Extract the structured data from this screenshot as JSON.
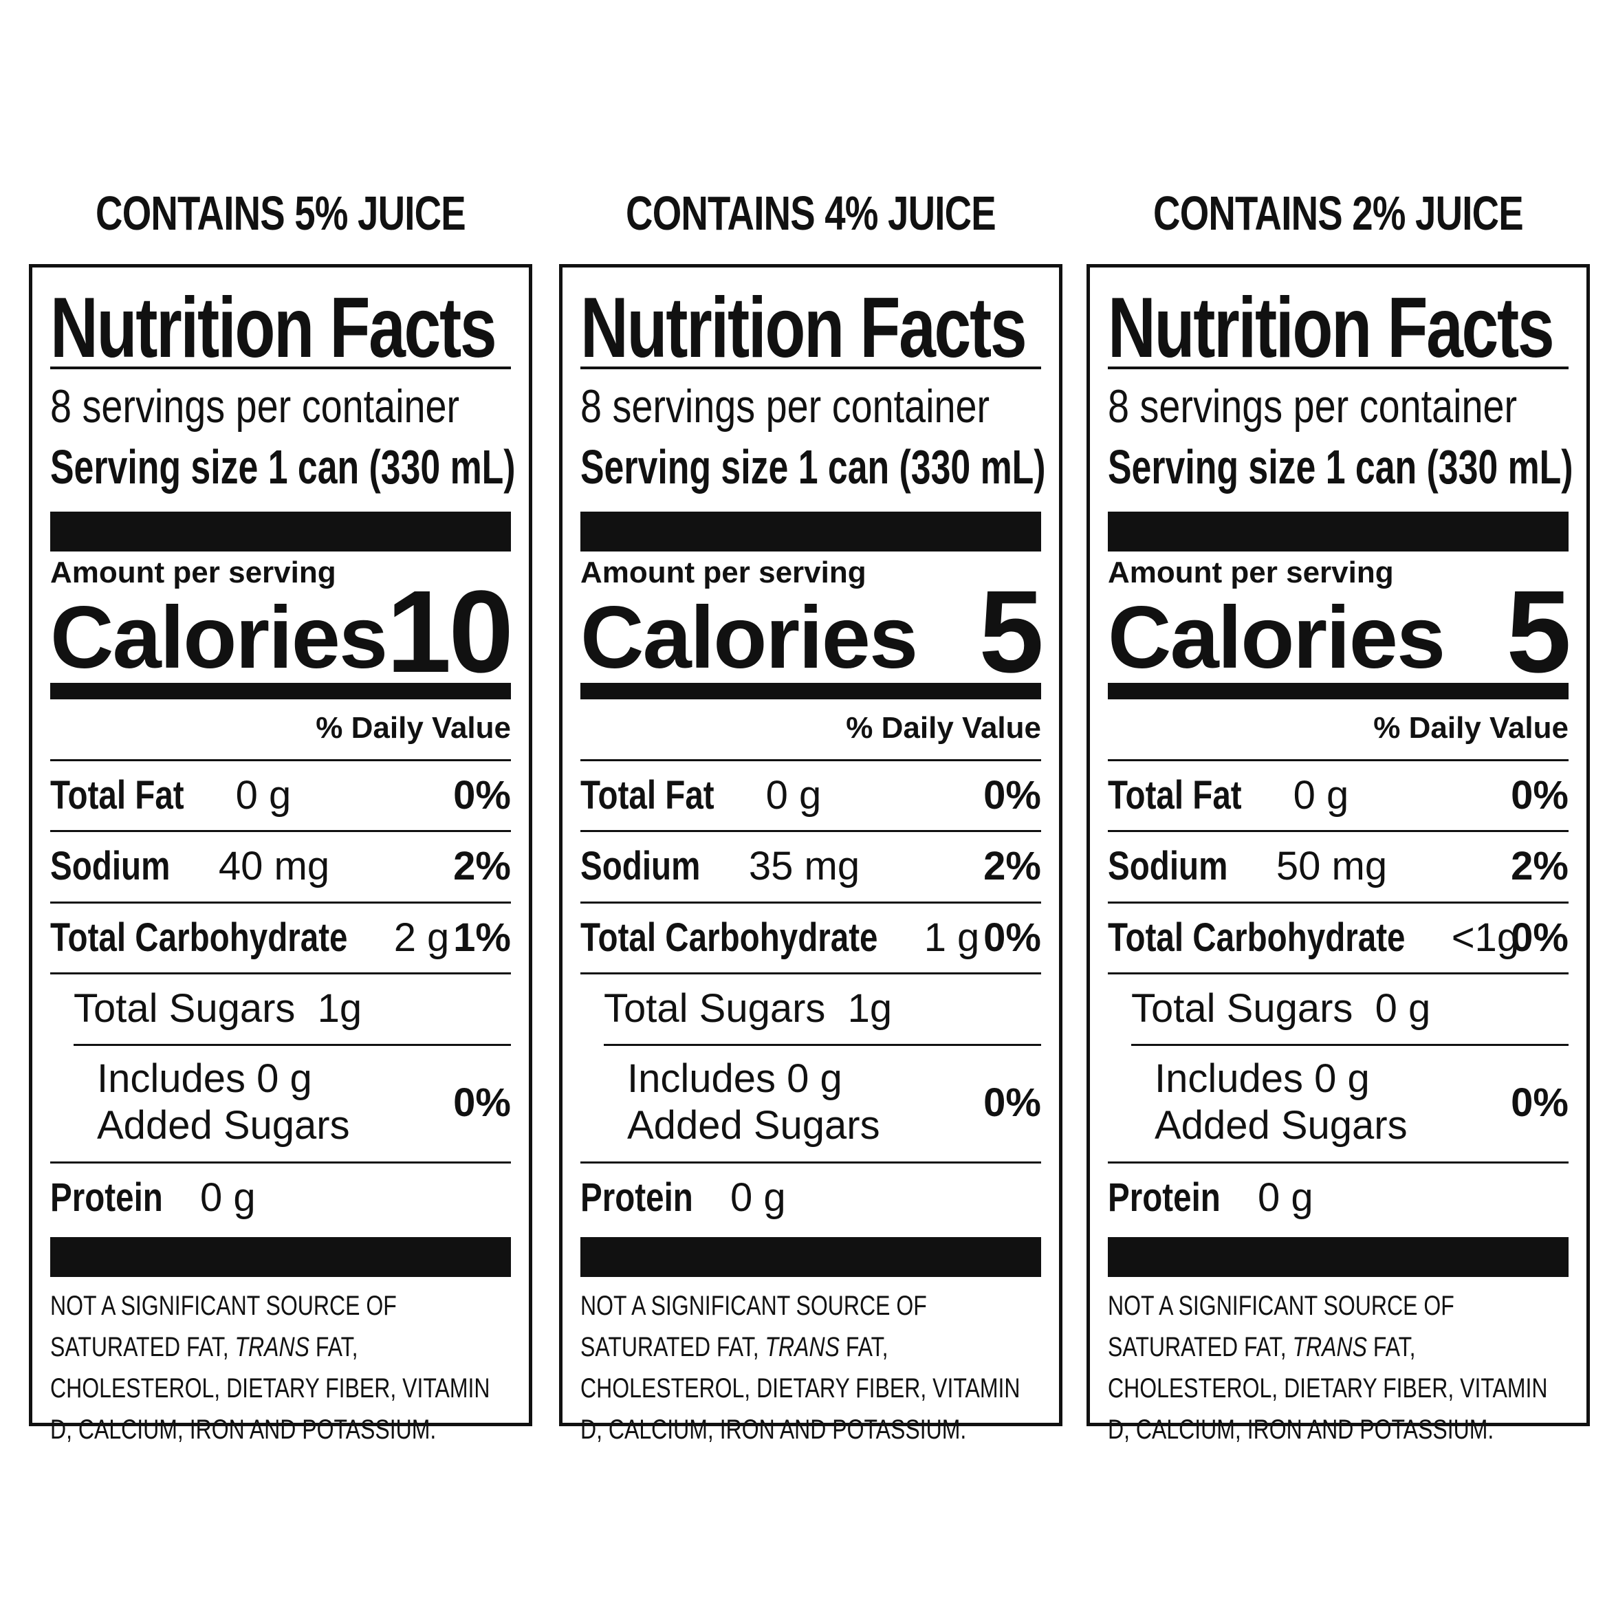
{
  "panels": [
    {
      "heading": "CONTAINS 5% JUICE",
      "title": "Nutrition Facts",
      "servings": "8 servings per container",
      "serving_size": "Serving size 1 can (330 mL)",
      "amount_per_serving": "Amount per serving",
      "calories_label": "Calories",
      "calories": "10",
      "dv_header": "% Daily Value",
      "total_fat": {
        "label": "Total Fat",
        "amount": "0 g",
        "dv": "0%"
      },
      "sodium": {
        "label": "Sodium",
        "amount": "40 mg",
        "dv": "2%"
      },
      "total_carb": {
        "label": "Total Carbohydrate",
        "amount": "2 g",
        "dv": "1%"
      },
      "total_sugars": {
        "label": "Total Sugars",
        "amount": "1g"
      },
      "added_sugars": {
        "line1": "Includes 0 g",
        "line2": "Added Sugars",
        "dv": "0%"
      },
      "protein": {
        "label": "Protein",
        "amount": "0 g"
      },
      "footnote_a": "NOT A SIGNIFICANT SOURCE OF SATURATED FAT, ",
      "footnote_trans": "TRANS",
      "footnote_b": " FAT, CHOLESTEROL, DIETARY FIBER, VITAMIN D, CALCIUM, IRON AND POTASSIUM."
    },
    {
      "heading": "CONTAINS 4% JUICE",
      "title": "Nutrition Facts",
      "servings": "8 servings per container",
      "serving_size": "Serving size 1 can (330 mL)",
      "amount_per_serving": "Amount per serving",
      "calories_label": "Calories",
      "calories": "5",
      "dv_header": "% Daily Value",
      "total_fat": {
        "label": "Total Fat",
        "amount": "0 g",
        "dv": "0%"
      },
      "sodium": {
        "label": "Sodium",
        "amount": "35 mg",
        "dv": "2%"
      },
      "total_carb": {
        "label": "Total Carbohydrate",
        "amount": "1 g",
        "dv": "0%"
      },
      "total_sugars": {
        "label": "Total Sugars",
        "amount": "1g"
      },
      "added_sugars": {
        "line1": "Includes 0 g",
        "line2": "Added Sugars",
        "dv": "0%"
      },
      "protein": {
        "label": "Protein",
        "amount": "0 g"
      },
      "footnote_a": "NOT A SIGNIFICANT SOURCE OF SATURATED FAT, ",
      "footnote_trans": "TRANS",
      "footnote_b": " FAT, CHOLESTEROL, DIETARY FIBER, VITAMIN D, CALCIUM, IRON AND POTASSIUM."
    },
    {
      "heading": "CONTAINS 2% JUICE",
      "title": "Nutrition Facts",
      "servings": "8 servings per container",
      "serving_size": "Serving size 1 can (330 mL)",
      "amount_per_serving": "Amount per serving",
      "calories_label": "Calories",
      "calories": "5",
      "dv_header": "% Daily Value",
      "total_fat": {
        "label": "Total Fat",
        "amount": "0 g",
        "dv": "0%"
      },
      "sodium": {
        "label": "Sodium",
        "amount": "50 mg",
        "dv": "2%"
      },
      "total_carb": {
        "label": "Total Carbohydrate",
        "amount": "<1g",
        "dv": "0%"
      },
      "total_sugars": {
        "label": "Total Sugars",
        "amount": "0 g"
      },
      "added_sugars": {
        "line1": "Includes 0 g",
        "line2": "Added Sugars",
        "dv": "0%"
      },
      "protein": {
        "label": "Protein",
        "amount": "0 g"
      },
      "footnote_a": "NOT A SIGNIFICANT SOURCE OF SATURATED FAT, ",
      "footnote_trans": "TRANS",
      "footnote_b": " FAT, CHOLESTEROL, DIETARY FIBER, VITAMIN D, CALCIUM, IRON AND POTASSIUM."
    }
  ]
}
